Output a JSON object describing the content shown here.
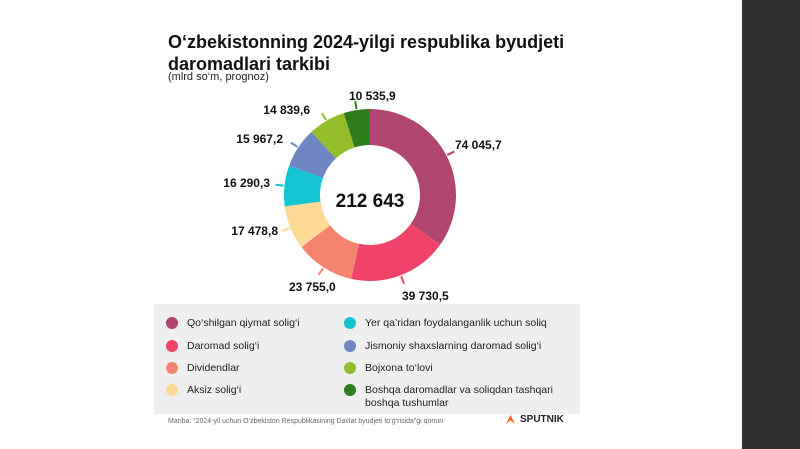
{
  "title": "O‘zbekistonning 2024-yilgi respublika byudjeti daromadlari tarkibi",
  "subtitle": "(mlrd so‘m, prognoz)",
  "chart_data": {
    "type": "pie",
    "title": "O‘zbekistonning 2024-yilgi respublika byudjeti daromadlari tarkibi",
    "subtitle": "(mlrd so‘m, prognoz)",
    "total_label": "212 643",
    "slices": [
      {
        "name": "Qo‘shilgan qiymat solig‘i",
        "value": 74045.7,
        "label": "74 045,7",
        "color": "#b0456f"
      },
      {
        "name": "Daromad solig‘i",
        "value": 39730.5,
        "label": "39 730,5",
        "color": "#f0436a"
      },
      {
        "name": "Dividendlar",
        "value": 23755.0,
        "label": "23 755,0",
        "color": "#f5846f"
      },
      {
        "name": "Aksiz solig‘i",
        "value": 17478.8,
        "label": "17 478,8",
        "color": "#fcd996"
      },
      {
        "name": "Yer qa’ridan foydalanganlik uchun soliq",
        "value": 16290.3,
        "label": "16 290,3",
        "color": "#15c4d0"
      },
      {
        "name": "Jismoniy shaxslarning daromad solig‘i",
        "value": 15967.2,
        "label": "15 967,2",
        "color": "#6f86c4"
      },
      {
        "name": "Bojxona to‘lovi",
        "value": 14839.6,
        "label": "14 839,6",
        "color": "#93bd2a"
      },
      {
        "name": "Boshqa daromadlar va soliqdan tashqari boshqa tushumlar",
        "value": 10535.9,
        "label": "10 535,9",
        "color": "#2e7d1c"
      }
    ]
  },
  "legend": [
    {
      "label": "Qo‘shilgan qiymat solig‘i",
      "color": "#b0456f"
    },
    {
      "label": "Daromad solig‘i",
      "color": "#f0436a"
    },
    {
      "label": "Dividendlar",
      "color": "#f5846f"
    },
    {
      "label": "Aksiz solig‘i",
      "color": "#fcd996"
    },
    {
      "label": "Yer qa’ridan foydalanganlik uchun soliq",
      "color": "#15c4d0"
    },
    {
      "label": "Jismoniy shaxslarning daromad solig‘i",
      "color": "#6f86c4"
    },
    {
      "label": "Bojxona to‘lovi",
      "color": "#93bd2a"
    },
    {
      "label": "Boshqa daromadlar va soliqdan tashqari boshqa tushumlar",
      "color": "#2e7d1c"
    }
  ],
  "source": "Manba: “2024-yil uchun O‘zbekiston Respublikasining Davlat byudjeti to‘g‘risida”gi qonun",
  "brand": "SPUTNIK",
  "brand_color": "#f26a21"
}
